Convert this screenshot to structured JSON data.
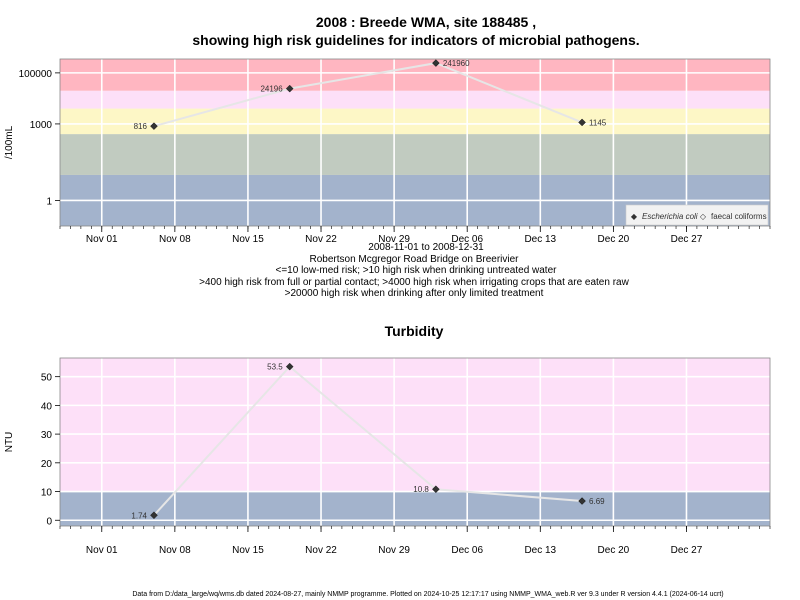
{
  "colors": {
    "red": "#ffb6c1",
    "pink": "#fde0f8",
    "yellow": "#fdf7c6",
    "green": "#c1cbc0",
    "blue": "#a3b3cc",
    "line": "#e6e6e6",
    "grid": "#ffffff",
    "marker": "#333333"
  },
  "chart_data": [
    {
      "type": "line",
      "title_line1": "2008 : Breede WMA, site 188485 ,",
      "title_line2": "showing high risk guidelines for indicators of microbial pathogens.",
      "ylabel": "/100mL",
      "yscale": "log",
      "ylim": [
        0.1,
        350000
      ],
      "yticks": [
        {
          "value": 1,
          "label": "1"
        },
        {
          "value": 1000,
          "label": "1000"
        },
        {
          "value": 100000,
          "label": "100000"
        }
      ],
      "xlim": [
        "2008-10-28",
        "2009-01-04"
      ],
      "xticks": [
        {
          "date": "2008-11-01",
          "label": "Nov 01"
        },
        {
          "date": "2008-11-08",
          "label": "Nov 08"
        },
        {
          "date": "2008-11-15",
          "label": "Nov 15"
        },
        {
          "date": "2008-11-22",
          "label": "Nov 22"
        },
        {
          "date": "2008-11-29",
          "label": "Nov 29"
        },
        {
          "date": "2008-12-06",
          "label": "Dec 06"
        },
        {
          "date": "2008-12-13",
          "label": "Dec 13"
        },
        {
          "date": "2008-12-20",
          "label": "Dec 20"
        },
        {
          "date": "2008-12-27",
          "label": "Dec 27"
        }
      ],
      "bands": [
        {
          "from": 0.1,
          "to": 10,
          "color": "blue"
        },
        {
          "from": 10,
          "to": 400,
          "color": "green"
        },
        {
          "from": 400,
          "to": 4000,
          "color": "yellow"
        },
        {
          "from": 4000,
          "to": 20000,
          "color": "pink"
        },
        {
          "from": 20000,
          "to": 350000,
          "color": "red"
        }
      ],
      "series": [
        {
          "name": "Escherichia coli",
          "points": [
            {
              "date": "2008-11-06",
              "value": 816,
              "label": "816"
            },
            {
              "date": "2008-11-19",
              "value": 24196,
              "label": "24196"
            },
            {
              "date": "2008-12-03",
              "value": 241960,
              "label": "241960"
            },
            {
              "date": "2008-12-17",
              "value": 1145,
              "label": "1145"
            }
          ]
        }
      ],
      "legend": {
        "position": "bottom-right",
        "items": [
          {
            "marker": "◆",
            "label": "Escherichia coli"
          },
          {
            "marker": "◇",
            "label": "faecal coliforms"
          }
        ]
      }
    },
    {
      "type": "line",
      "title": "Turbidity",
      "ylabel": "NTU",
      "yscale": "linear",
      "ylim": [
        -2,
        56.5
      ],
      "yticks": [
        {
          "value": 0,
          "label": "0"
        },
        {
          "value": 10,
          "label": "10"
        },
        {
          "value": 20,
          "label": "20"
        },
        {
          "value": 30,
          "label": "30"
        },
        {
          "value": 40,
          "label": "40"
        },
        {
          "value": 50,
          "label": "50"
        }
      ],
      "xlim": [
        "2008-10-28",
        "2009-01-04"
      ],
      "xticks": [
        {
          "date": "2008-11-01",
          "label": "Nov 01"
        },
        {
          "date": "2008-11-08",
          "label": "Nov 08"
        },
        {
          "date": "2008-11-15",
          "label": "Nov 15"
        },
        {
          "date": "2008-11-22",
          "label": "Nov 22"
        },
        {
          "date": "2008-11-29",
          "label": "Nov 29"
        },
        {
          "date": "2008-12-06",
          "label": "Dec 06"
        },
        {
          "date": "2008-12-13",
          "label": "Dec 13"
        },
        {
          "date": "2008-12-20",
          "label": "Dec 20"
        },
        {
          "date": "2008-12-27",
          "label": "Dec 27"
        }
      ],
      "bands": [
        {
          "from": -2,
          "to": 10,
          "color": "blue"
        },
        {
          "from": 10,
          "to": 56.5,
          "color": "pink"
        }
      ],
      "series": [
        {
          "name": "",
          "points": [
            {
              "date": "2008-11-06",
              "value": 1.74,
              "label": "1.74"
            },
            {
              "date": "2008-11-19",
              "value": 53.5,
              "label": "53.5"
            },
            {
              "date": "2008-12-03",
              "value": 10.8,
              "label": "10.8"
            },
            {
              "date": "2008-12-17",
              "value": 6.69,
              "label": "6.69"
            }
          ]
        }
      ]
    }
  ],
  "caption": {
    "lines": [
      "2008-11-01 to 2008-12-31",
      "Robertson Mcgregor Road Bridge on Breerivier",
      "<=10 low-med risk; >10 high risk when drinking untreated water",
      ">400 high risk from full or partial contact; >4000 high risk when irrigating crops that are eaten raw",
      ">20000 high risk when drinking after only limited treatment"
    ]
  },
  "footer": "Data from D:/data_large/wq/wms.db dated 2024-08-27, mainly NMMP programme. Plotted on 2024-10-25 12:17:17 using NMMP_WMA_web.R ver 9.3 under R version 4.4.1 (2024-06-14 ucrt)"
}
